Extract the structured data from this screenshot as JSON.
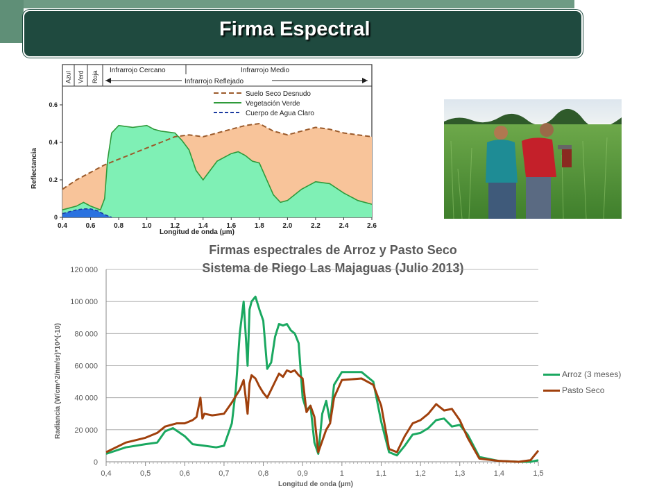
{
  "slide": {
    "title": "Firma Espectral"
  },
  "top_chart": {
    "type": "area",
    "regions": [
      "Azul",
      "Verd",
      "Roja",
      "Infrarrojo Cercano",
      "Infrarrojo Medio",
      "Infrarrojo Reflejado"
    ],
    "xlabel": "Longitud de onda (µm)",
    "ylabel": "Reflectancia",
    "xticks": [
      "0.4",
      "0.6",
      "0.8",
      "1.0",
      "1.2",
      "1.4",
      "1.6",
      "1.8",
      "2.0",
      "2.2",
      "2.4",
      "2.6"
    ],
    "yticks": [
      "0",
      "0.2",
      "0.4",
      "0.6"
    ],
    "xlim": [
      0.4,
      2.6
    ],
    "ylim": [
      0,
      0.7
    ],
    "colors": {
      "soil": "#f8c49a",
      "soil_line": "#9b5a2a",
      "veg": "#7ff0b5",
      "veg_line": "#2e9a3a",
      "water": "#2a72e0",
      "water_line": "#1a3aa0"
    },
    "series": [
      {
        "name": "Suelo Seco Desnudo",
        "x": [
          0.4,
          0.5,
          0.6,
          0.7,
          0.8,
          0.9,
          1.0,
          1.1,
          1.2,
          1.3,
          1.4,
          1.5,
          1.6,
          1.7,
          1.8,
          1.9,
          2.0,
          2.1,
          2.2,
          2.3,
          2.4,
          2.5,
          2.6
        ],
        "y": [
          0.15,
          0.2,
          0.24,
          0.28,
          0.31,
          0.34,
          0.37,
          0.4,
          0.43,
          0.44,
          0.43,
          0.45,
          0.47,
          0.49,
          0.5,
          0.46,
          0.44,
          0.46,
          0.48,
          0.47,
          0.45,
          0.44,
          0.43
        ]
      },
      {
        "name": "Vegetación Verde",
        "x": [
          0.4,
          0.5,
          0.55,
          0.6,
          0.67,
          0.7,
          0.72,
          0.75,
          0.8,
          0.9,
          1.0,
          1.05,
          1.1,
          1.2,
          1.25,
          1.3,
          1.35,
          1.4,
          1.45,
          1.5,
          1.6,
          1.65,
          1.7,
          1.75,
          1.8,
          1.9,
          1.95,
          2.0,
          2.05,
          2.1,
          2.2,
          2.3,
          2.4,
          2.5,
          2.6
        ],
        "y": [
          0.04,
          0.06,
          0.08,
          0.06,
          0.04,
          0.1,
          0.3,
          0.45,
          0.49,
          0.48,
          0.49,
          0.47,
          0.46,
          0.45,
          0.41,
          0.36,
          0.25,
          0.2,
          0.25,
          0.3,
          0.34,
          0.35,
          0.33,
          0.3,
          0.29,
          0.12,
          0.08,
          0.09,
          0.12,
          0.15,
          0.19,
          0.18,
          0.13,
          0.09,
          0.07
        ]
      },
      {
        "name": "Cuerpo de Agua Claro",
        "x": [
          0.4,
          0.45,
          0.5,
          0.55,
          0.6,
          0.65,
          0.7,
          0.75
        ],
        "y": [
          0.02,
          0.03,
          0.04,
          0.045,
          0.045,
          0.035,
          0.015,
          0.0
        ]
      }
    ]
  },
  "bottom_chart": {
    "type": "line",
    "title_line1": "Firmas espectrales de Arroz y Pasto Seco",
    "title_line2": "Sistema de Riego Las Majaguas (Julio 2013)",
    "xlabel": "Longitud de onda (µm)",
    "ylabel": "Radiancia  (W/cm^2/nm/sr)*10^(-10)",
    "xticks": [
      "0,4",
      "0,5",
      "0,6",
      "0,7",
      "0,8",
      "0,9",
      "1",
      "1,1",
      "1,2",
      "1,3",
      "1,4",
      "1,5"
    ],
    "yticks": [
      "0",
      "20 000",
      "40 000",
      "60 000",
      "80 000",
      "100 000",
      "120 000"
    ],
    "xlim": [
      0.4,
      1.5
    ],
    "ylim": [
      0,
      120000
    ],
    "series": [
      {
        "name": "Arroz (3 meses)",
        "color": "#1aa860",
        "x": [
          0.4,
          0.45,
          0.5,
          0.53,
          0.55,
          0.57,
          0.6,
          0.62,
          0.65,
          0.68,
          0.7,
          0.72,
          0.73,
          0.74,
          0.75,
          0.76,
          0.765,
          0.77,
          0.78,
          0.79,
          0.8,
          0.81,
          0.82,
          0.83,
          0.84,
          0.85,
          0.86,
          0.87,
          0.88,
          0.89,
          0.9,
          0.91,
          0.92,
          0.93,
          0.94,
          0.95,
          0.96,
          0.97,
          0.98,
          1.0,
          1.05,
          1.08,
          1.1,
          1.12,
          1.14,
          1.16,
          1.18,
          1.2,
          1.22,
          1.24,
          1.26,
          1.28,
          1.3,
          1.32,
          1.35,
          1.4,
          1.45,
          1.48,
          1.5
        ],
        "y": [
          5000,
          9000,
          11000,
          12000,
          19000,
          21000,
          16000,
          11000,
          10000,
          9000,
          10000,
          24000,
          45000,
          80000,
          100000,
          60000,
          95000,
          100000,
          103000,
          95000,
          88000,
          58000,
          62000,
          78000,
          86000,
          85000,
          86000,
          82000,
          80000,
          74000,
          40000,
          32000,
          35000,
          12000,
          5000,
          30000,
          38000,
          25000,
          48000,
          56000,
          56000,
          50000,
          25000,
          6000,
          4000,
          10000,
          17000,
          18000,
          21000,
          26000,
          27000,
          22000,
          23000,
          17000,
          3000,
          500,
          0,
          0,
          1000
        ]
      },
      {
        "name": "Pasto Seco",
        "color": "#a0400c",
        "x": [
          0.4,
          0.45,
          0.5,
          0.53,
          0.55,
          0.58,
          0.6,
          0.62,
          0.63,
          0.64,
          0.645,
          0.65,
          0.67,
          0.7,
          0.72,
          0.74,
          0.75,
          0.76,
          0.765,
          0.77,
          0.78,
          0.79,
          0.8,
          0.81,
          0.82,
          0.83,
          0.84,
          0.85,
          0.86,
          0.87,
          0.88,
          0.89,
          0.9,
          0.91,
          0.92,
          0.93,
          0.94,
          0.95,
          0.96,
          0.97,
          0.98,
          1.0,
          1.05,
          1.08,
          1.1,
          1.12,
          1.14,
          1.16,
          1.18,
          1.2,
          1.22,
          1.24,
          1.26,
          1.28,
          1.3,
          1.32,
          1.35,
          1.4,
          1.45,
          1.48,
          1.5
        ],
        "y": [
          6000,
          12000,
          15000,
          18000,
          22000,
          24000,
          24000,
          26000,
          28000,
          40000,
          27000,
          30000,
          29000,
          30000,
          37000,
          45000,
          51000,
          30000,
          49000,
          54000,
          52000,
          47000,
          43000,
          40000,
          45000,
          50000,
          55000,
          53000,
          57000,
          56000,
          57000,
          54000,
          52000,
          31000,
          35000,
          28000,
          6000,
          13000,
          20000,
          24000,
          40000,
          51000,
          52000,
          48000,
          35000,
          8000,
          6000,
          16000,
          24000,
          26000,
          30000,
          36000,
          32000,
          33000,
          26000,
          15000,
          2000,
          500,
          0,
          1000,
          7000
        ]
      }
    ]
  }
}
